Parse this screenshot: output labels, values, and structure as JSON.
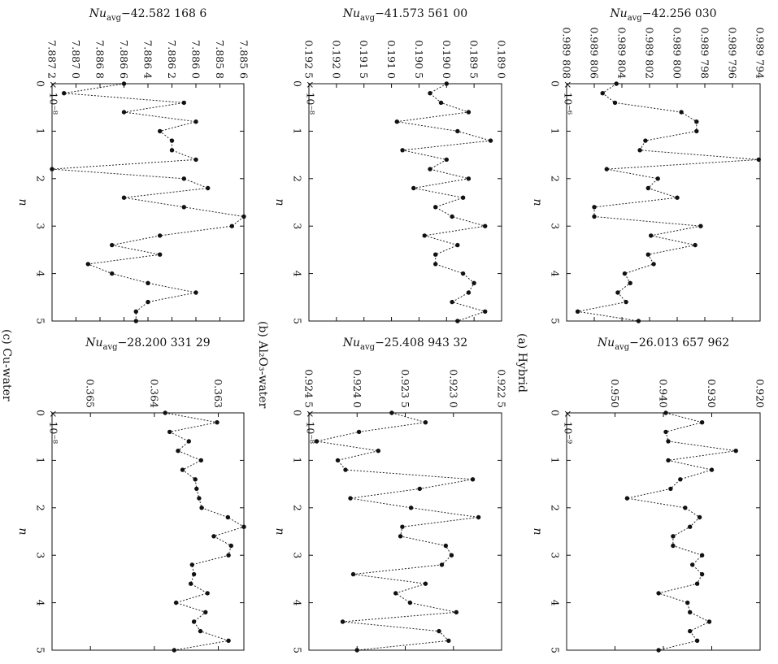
{
  "chart_data": [
    {
      "panel": "a",
      "type": "line",
      "n_label": "n",
      "title_prefix": "Nu",
      "title_sub": "avg",
      "title_value": "−42.256 030",
      "exp_label": "× 10⁻⁶",
      "ylim": [
        0.989794,
        0.989808
      ],
      "y_ticks": [
        0.989794,
        0.989796,
        0.989798,
        0.9898,
        0.989802,
        0.989804,
        0.989806,
        0.989808
      ],
      "y_tick_labels": [
        "0.989 794",
        "0.989 796",
        "0.989 798",
        "0.989 800",
        "0.989 802",
        "0.989 804",
        "0.989 806",
        "0.989 808"
      ],
      "x_ticks": [
        0,
        1,
        2,
        3,
        4,
        5
      ],
      "xlim": [
        0,
        5
      ],
      "caption": "(a) Hybrid",
      "x": [
        0,
        0.2,
        0.4,
        0.6,
        0.8,
        1.0,
        1.2,
        1.4,
        1.6,
        1.8,
        2.0,
        2.2,
        2.4,
        2.6,
        2.8,
        3.0,
        3.2,
        3.4,
        3.6,
        3.8,
        4.0,
        4.2,
        4.4,
        4.6,
        4.8,
        5.0
      ],
      "y": [
        0.9898044,
        0.9898054,
        0.9898045,
        0.9897997,
        0.9897986,
        0.9897986,
        0.9898023,
        0.9898027,
        0.9897941,
        0.9898051,
        0.9898014,
        0.9898021,
        0.9898,
        0.989806,
        0.989806,
        0.9897983,
        0.9898019,
        0.9897987,
        0.9898021,
        0.9898017,
        0.9898038,
        0.9898034,
        0.9898043,
        0.9898037,
        0.9898072,
        0.9898028
      ]
    },
    {
      "panel": "b",
      "type": "line",
      "n_label": "n",
      "title_prefix": "Nu",
      "title_sub": "avg",
      "title_value": "−41.573 561 00",
      "exp_label": "× 10⁻⁸",
      "ylim": [
        0.189,
        0.1925
      ],
      "y_ticks": [
        0.189,
        0.1895,
        0.19,
        0.1905,
        0.191,
        0.1915,
        0.192,
        0.1925
      ],
      "y_tick_labels": [
        "0.189 0",
        "0.189 5",
        "0.190 0",
        "0.190 5",
        "0.191 0",
        "0.191 5",
        "0.192 0",
        "0.192 5"
      ],
      "x_ticks": [
        0,
        1,
        2,
        3,
        4,
        5
      ],
      "xlim": [
        0,
        5
      ],
      "caption": "(b) Al₂O₃-water",
      "x": [
        0,
        0.2,
        0.4,
        0.6,
        0.8,
        1.0,
        1.2,
        1.4,
        1.6,
        1.8,
        2.0,
        2.2,
        2.4,
        2.6,
        2.8,
        3.0,
        3.2,
        3.4,
        3.6,
        3.8,
        4.0,
        4.2,
        4.4,
        4.6,
        4.8,
        5.0
      ],
      "y": [
        0.19,
        0.1903,
        0.1901,
        0.1896,
        0.1909,
        0.1898,
        0.1892,
        0.1908,
        0.19,
        0.1903,
        0.1896,
        0.1906,
        0.1897,
        0.1902,
        0.1899,
        0.1893,
        0.1904,
        0.1898,
        0.1902,
        0.1902,
        0.1897,
        0.1895,
        0.1896,
        0.1899,
        0.1893,
        0.1898
      ]
    },
    {
      "panel": "c",
      "type": "line",
      "n_label": "n",
      "title_prefix": "Nu",
      "title_sub": "avg",
      "title_value": "−42.582 168 6",
      "exp_label": "× 10⁻⁸",
      "ylim": [
        7.8856,
        7.8872
      ],
      "y_ticks": [
        7.8856,
        7.8858,
        7.886,
        7.8862,
        7.8864,
        7.8866,
        7.8868,
        7.887,
        7.8872
      ],
      "y_tick_labels": [
        "7.885 6",
        "7.885 8",
        "7.886 0",
        "7.886 2",
        "7.886 4",
        "7.886 6",
        "7.886 8",
        "7.887 0",
        "7.887 2"
      ],
      "x_ticks": [
        0,
        1,
        2,
        3,
        4,
        5
      ],
      "xlim": [
        0,
        5
      ],
      "caption": "(c) Cu-water",
      "x": [
        0,
        0.2,
        0.4,
        0.6,
        0.8,
        1.0,
        1.2,
        1.4,
        1.6,
        1.8,
        2.0,
        2.2,
        2.4,
        2.6,
        2.8,
        3.0,
        3.2,
        3.4,
        3.6,
        3.8,
        4.0,
        4.2,
        4.4,
        4.6,
        4.8,
        5.0
      ],
      "y": [
        7.8866,
        7.8871,
        7.8861,
        7.8866,
        7.886,
        7.8863,
        7.8862,
        7.8862,
        7.886,
        7.8872,
        7.8861,
        7.8859,
        7.8866,
        7.8861,
        7.8856,
        7.8857,
        7.8863,
        7.8867,
        7.8863,
        7.8869,
        7.8867,
        7.8864,
        7.886,
        7.8864,
        7.8865,
        7.8865
      ]
    },
    {
      "panel": "d",
      "type": "line",
      "n_label": "n",
      "title_prefix": "Nu",
      "title_sub": "avg",
      "title_value": "−26.013 657 962",
      "exp_label": "× 10⁻⁹",
      "ylim": [
        0.92,
        0.96
      ],
      "y_ticks": [
        0.92,
        0.93,
        0.94,
        0.95
      ],
      "y_tick_labels": [
        "0.920",
        "0.930",
        "0.940",
        "0.950"
      ],
      "x_ticks": [
        0,
        1,
        2,
        3,
        4,
        5
      ],
      "xlim": [
        0,
        5
      ],
      "caption": "",
      "x": [
        0,
        0.2,
        0.4,
        0.6,
        0.8,
        1.0,
        1.2,
        1.4,
        1.6,
        1.8,
        2.0,
        2.2,
        2.4,
        2.6,
        2.8,
        3.0,
        3.2,
        3.4,
        3.6,
        3.8,
        4.0,
        4.2,
        4.4,
        4.6,
        4.8,
        5.0
      ],
      "y": [
        0.9395,
        0.932,
        0.9395,
        0.939,
        0.925,
        0.939,
        0.93,
        0.9365,
        0.9385,
        0.9475,
        0.9355,
        0.9325,
        0.9345,
        0.938,
        0.938,
        0.932,
        0.934,
        0.932,
        0.933,
        0.941,
        0.935,
        0.9345,
        0.9305,
        0.9345,
        0.933,
        0.941
      ]
    },
    {
      "panel": "e",
      "type": "line",
      "n_label": "n",
      "title_prefix": "Nu",
      "title_sub": "avg",
      "title_value": "−25.408 943 32",
      "exp_label": "× 10⁻⁸",
      "ylim": [
        0.9225,
        0.9245
      ],
      "y_ticks": [
        0.9225,
        0.923,
        0.9235,
        0.924,
        0.9245
      ],
      "y_tick_labels": [
        "0.922 5",
        "0.923 0",
        "0.923 5",
        "0.924 0",
        "0.924 5"
      ],
      "x_ticks": [
        0,
        1,
        2,
        3,
        4,
        5
      ],
      "xlim": [
        0,
        5
      ],
      "caption": "",
      "x": [
        0,
        0.2,
        0.4,
        0.6,
        0.8,
        1.0,
        1.2,
        1.4,
        1.6,
        1.8,
        2.0,
        2.2,
        2.4,
        2.6,
        2.8,
        3.0,
        3.2,
        3.4,
        3.6,
        3.8,
        4.0,
        4.2,
        4.4,
        4.6,
        4.8,
        5.0
      ],
      "y": [
        0.92364,
        0.92329,
        0.92398,
        0.92442,
        0.92378,
        0.9242,
        0.92412,
        0.9228,
        0.92335,
        0.92407,
        0.92344,
        0.92274,
        0.92353,
        0.92355,
        0.92308,
        0.92302,
        0.92312,
        0.92404,
        0.92329,
        0.9236,
        0.92345,
        0.92297,
        0.92415,
        0.92315,
        0.92305,
        0.924
      ]
    },
    {
      "panel": "f",
      "type": "line",
      "n_label": "n",
      "title_prefix": "Nu",
      "title_sub": "avg",
      "title_value": "−28.200 331 29",
      "exp_label": "× 10⁻⁸",
      "ylim": [
        0.3626,
        0.3656
      ],
      "y_ticks": [
        0.363,
        0.364,
        0.365
      ],
      "y_tick_labels": [
        "0.363",
        "0.364",
        "0.365"
      ],
      "x_ticks": [
        0,
        1,
        2,
        3,
        4,
        5
      ],
      "xlim": [
        0,
        5
      ],
      "caption": "",
      "x": [
        0,
        0.2,
        0.4,
        0.6,
        0.8,
        1.0,
        1.2,
        1.4,
        1.6,
        1.8,
        2.0,
        2.2,
        2.4,
        2.6,
        2.8,
        3.0,
        3.2,
        3.4,
        3.6,
        3.8,
        4.0,
        4.2,
        4.4,
        4.6,
        4.8,
        5.0
      ],
      "y": [
        0.36383,
        0.36302,
        0.36376,
        0.36346,
        0.36363,
        0.36327,
        0.36356,
        0.36336,
        0.36334,
        0.3633,
        0.36326,
        0.36285,
        0.3626,
        0.36307,
        0.3628,
        0.36284,
        0.36341,
        0.36338,
        0.36343,
        0.36317,
        0.36366,
        0.3632,
        0.36338,
        0.36328,
        0.36284,
        0.36369
      ]
    }
  ]
}
